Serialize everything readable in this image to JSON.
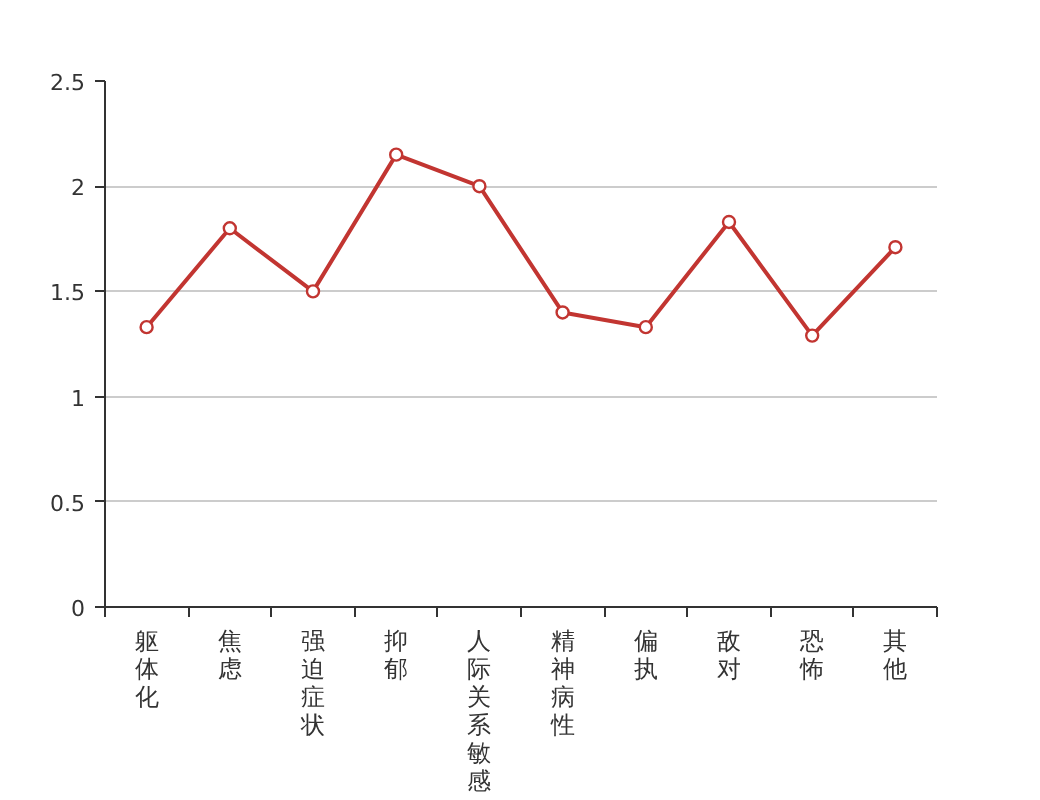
{
  "chart_data": {
    "type": "line",
    "categories": [
      "躯体化",
      "焦虑",
      "强迫症状",
      "抑郁",
      "人际关系敏感",
      "精神病性",
      "偏执",
      "敌对",
      "恐怖",
      "其他"
    ],
    "values": [
      1.33,
      1.8,
      1.5,
      2.15,
      2.0,
      1.4,
      1.33,
      1.83,
      1.29,
      1.71
    ],
    "color": "#c23531",
    "ylim": [
      0,
      2.5
    ],
    "yticks": [
      0,
      0.5,
      1,
      1.5,
      2,
      2.5
    ],
    "grid": "y",
    "marker": "circle",
    "line_style": "solid"
  }
}
